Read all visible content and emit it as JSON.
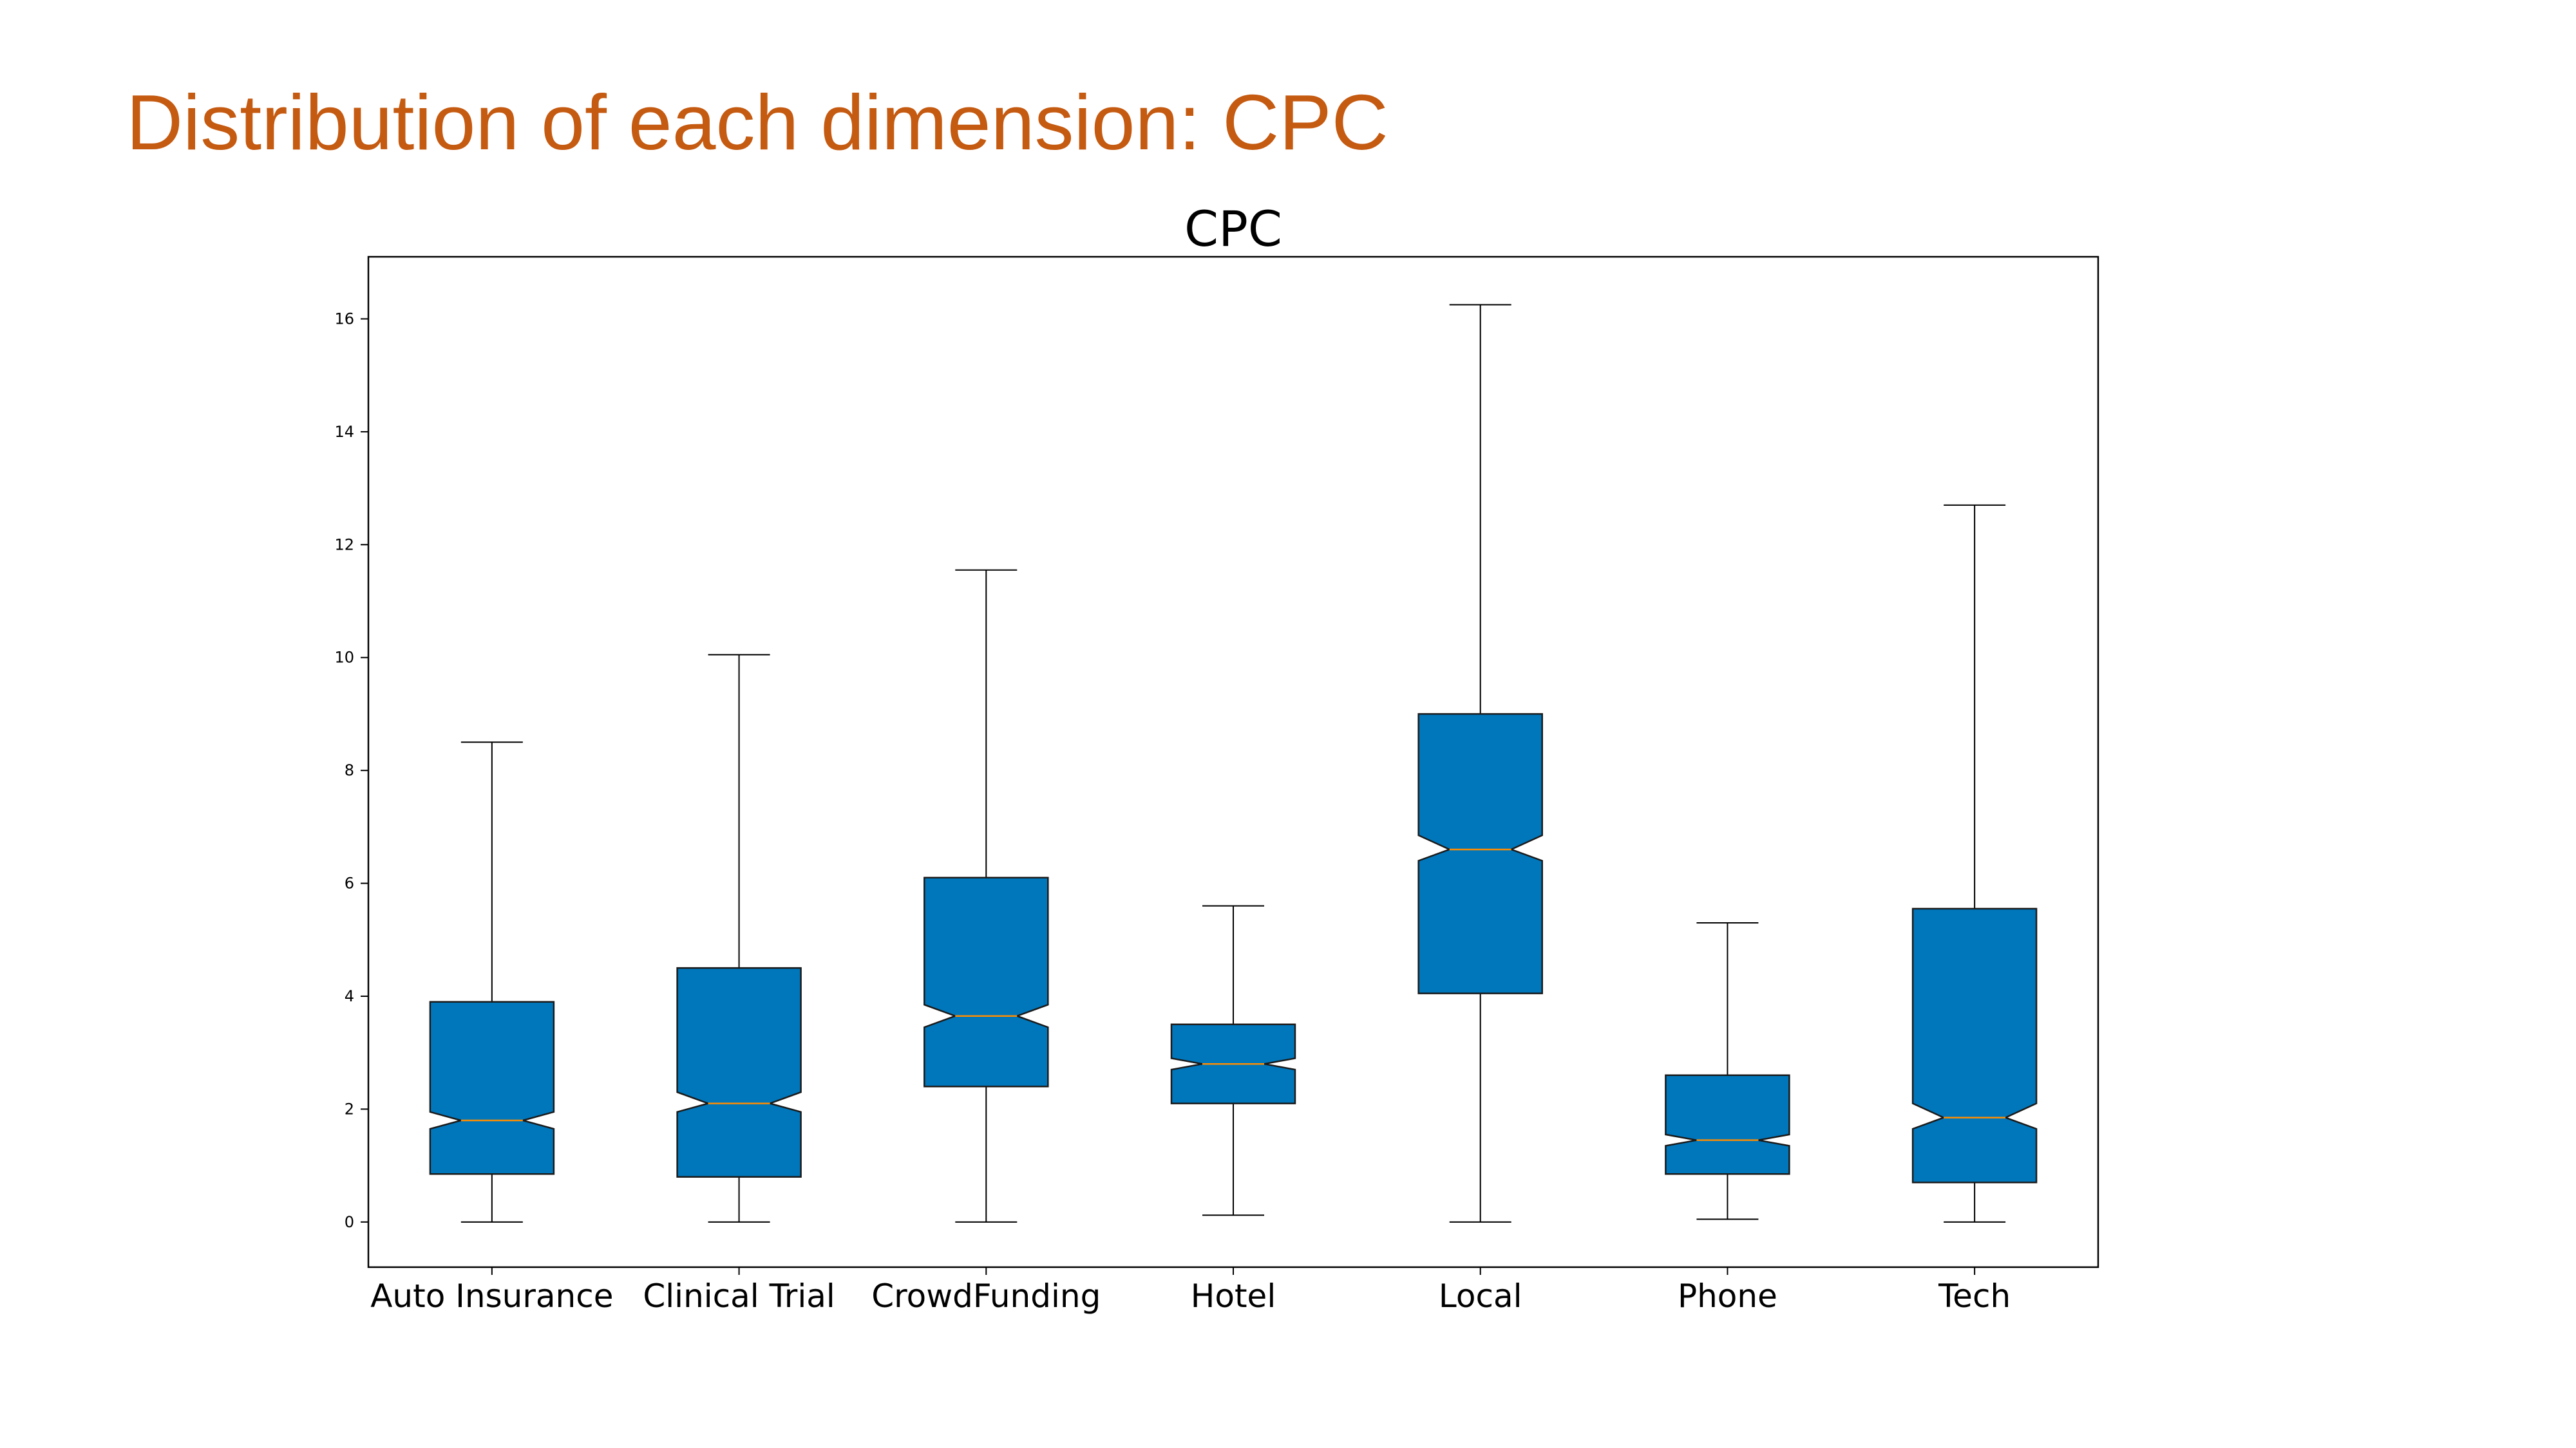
{
  "slide": {
    "title": "Distribution of each dimension: CPC"
  },
  "chart_data": {
    "type": "boxplot",
    "title": "CPC",
    "xlabel": "",
    "ylabel": "",
    "ylim": [
      -0.8,
      17.1
    ],
    "yticks": [
      0,
      2,
      4,
      6,
      8,
      10,
      12,
      14,
      16
    ],
    "notched": true,
    "grid": false,
    "box_color": "#0077bb",
    "median_color": "#ff8c00",
    "categories": [
      "Auto Insurance",
      "Clinical Trial",
      "CrowdFunding",
      "Hotel",
      "Local",
      "Phone",
      "Tech"
    ],
    "boxes": [
      {
        "label": "Auto Insurance",
        "whisker_low": 0.0,
        "q1": 0.85,
        "median": 1.8,
        "q3": 3.9,
        "whisker_high": 8.5,
        "notch_low": 1.65,
        "notch_high": 1.95
      },
      {
        "label": "Clinical Trial",
        "whisker_low": 0.0,
        "q1": 0.8,
        "median": 2.1,
        "q3": 4.5,
        "whisker_high": 10.05,
        "notch_low": 1.95,
        "notch_high": 2.3
      },
      {
        "label": "CrowdFunding",
        "whisker_low": 0.0,
        "q1": 2.4,
        "median": 3.65,
        "q3": 6.1,
        "whisker_high": 11.55,
        "notch_low": 3.45,
        "notch_high": 3.85
      },
      {
        "label": "Hotel",
        "whisker_low": 0.12,
        "q1": 2.1,
        "median": 2.8,
        "q3": 3.5,
        "whisker_high": 5.6,
        "notch_low": 2.7,
        "notch_high": 2.9
      },
      {
        "label": "Local",
        "whisker_low": 0.0,
        "q1": 4.05,
        "median": 6.6,
        "q3": 9.0,
        "whisker_high": 16.25,
        "notch_low": 6.4,
        "notch_high": 6.85
      },
      {
        "label": "Phone",
        "whisker_low": 0.05,
        "q1": 0.85,
        "median": 1.45,
        "q3": 2.6,
        "whisker_high": 5.3,
        "notch_low": 1.35,
        "notch_high": 1.55
      },
      {
        "label": "Tech",
        "whisker_low": 0.0,
        "q1": 0.7,
        "median": 1.85,
        "q3": 5.55,
        "whisker_high": 12.7,
        "notch_low": 1.65,
        "notch_high": 2.1
      }
    ]
  }
}
